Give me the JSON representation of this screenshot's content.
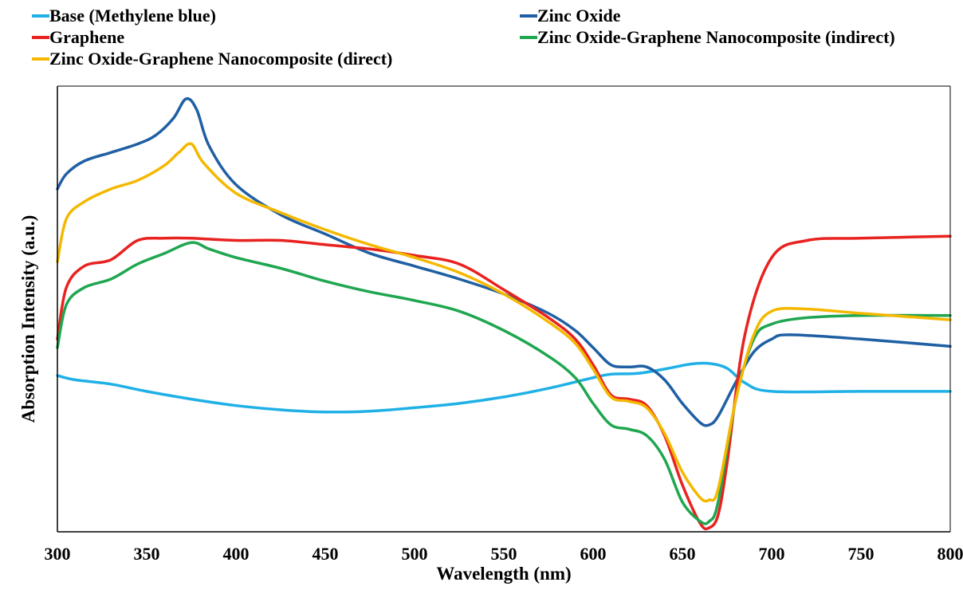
{
  "chart_data": {
    "type": "line",
    "title": "",
    "xlabel": "Wavelength (nm)",
    "ylabel": "Absorption Intensity (a.u.)",
    "xlim": [
      300,
      800
    ],
    "ylim": [
      0,
      1
    ],
    "xticks": [
      300,
      350,
      400,
      450,
      500,
      550,
      600,
      650,
      700,
      750,
      800
    ],
    "grid": false,
    "legend_position": "top",
    "series": [
      {
        "name": "Base (Methylene blue)",
        "color": "#1fb0e6",
        "x": [
          300,
          310,
          330,
          350,
          375,
          400,
          425,
          450,
          475,
          500,
          525,
          550,
          575,
          600,
          610,
          625,
          640,
          655,
          665,
          675,
          685,
          700,
          750,
          800
        ],
        "y": [
          0.355,
          0.345,
          0.335,
          0.318,
          0.3,
          0.285,
          0.275,
          0.27,
          0.272,
          0.28,
          0.29,
          0.305,
          0.325,
          0.35,
          0.358,
          0.36,
          0.37,
          0.382,
          0.383,
          0.372,
          0.338,
          0.318,
          0.318,
          0.318
        ]
      },
      {
        "name": "Zinc Oxide",
        "color": "#1f5fa3",
        "x": [
          300,
          305,
          315,
          330,
          345,
          355,
          365,
          372,
          378,
          385,
          400,
          425,
          450,
          475,
          500,
          525,
          550,
          575,
          590,
          600,
          610,
          620,
          630,
          640,
          650,
          660,
          665,
          670,
          680,
          690,
          700,
          710,
          750,
          800
        ],
        "y": [
          0.79,
          0.825,
          0.855,
          0.875,
          0.895,
          0.915,
          0.955,
          1.0,
          0.975,
          0.89,
          0.8,
          0.73,
          0.685,
          0.64,
          0.61,
          0.58,
          0.545,
          0.5,
          0.46,
          0.42,
          0.38,
          0.375,
          0.375,
          0.345,
          0.29,
          0.245,
          0.24,
          0.26,
          0.34,
          0.41,
          0.44,
          0.45,
          0.44,
          0.423
        ]
      },
      {
        "name": "Graphene",
        "color": "#e8221f",
        "x": [
          300,
          305,
          315,
          330,
          345,
          360,
          375,
          400,
          425,
          450,
          475,
          500,
          525,
          550,
          575,
          590,
          600,
          610,
          620,
          630,
          640,
          650,
          660,
          665,
          670,
          675,
          685,
          700,
          720,
          750,
          800
        ],
        "y": [
          0.44,
          0.56,
          0.61,
          0.625,
          0.67,
          0.675,
          0.675,
          0.67,
          0.67,
          0.66,
          0.65,
          0.635,
          0.615,
          0.555,
          0.49,
          0.44,
          0.38,
          0.31,
          0.3,
          0.285,
          0.215,
          0.1,
          0.01,
          0.0,
          0.03,
          0.15,
          0.45,
          0.63,
          0.67,
          0.675,
          0.68
        ]
      },
      {
        "name": "Zinc Oxide-Graphene Nanocomposite (indirect)",
        "color": "#1fa650",
        "x": [
          300,
          305,
          315,
          330,
          345,
          360,
          375,
          385,
          400,
          425,
          450,
          475,
          500,
          525,
          550,
          575,
          590,
          600,
          610,
          620,
          630,
          640,
          650,
          660,
          665,
          670,
          680,
          690,
          700,
          720,
          750,
          800
        ],
        "y": [
          0.42,
          0.52,
          0.56,
          0.58,
          0.615,
          0.64,
          0.665,
          0.65,
          0.63,
          0.605,
          0.575,
          0.55,
          0.53,
          0.505,
          0.46,
          0.4,
          0.35,
          0.29,
          0.24,
          0.23,
          0.215,
          0.16,
          0.06,
          0.015,
          0.015,
          0.06,
          0.3,
          0.44,
          0.475,
          0.49,
          0.495,
          0.495
        ]
      },
      {
        "name": "Zinc Oxide-Graphene Nanocomposite (direct)",
        "color": "#f5b800",
        "x": [
          300,
          305,
          315,
          330,
          345,
          360,
          368,
          375,
          382,
          400,
          425,
          450,
          475,
          500,
          525,
          550,
          575,
          590,
          600,
          610,
          620,
          630,
          640,
          650,
          660,
          665,
          670,
          680,
          690,
          700,
          720,
          750,
          800
        ],
        "y": [
          0.62,
          0.72,
          0.76,
          0.79,
          0.81,
          0.845,
          0.875,
          0.895,
          0.85,
          0.78,
          0.735,
          0.695,
          0.66,
          0.63,
          0.595,
          0.545,
          0.48,
          0.43,
          0.37,
          0.305,
          0.295,
          0.28,
          0.22,
          0.13,
          0.07,
          0.065,
          0.09,
          0.3,
          0.45,
          0.505,
          0.51,
          0.5,
          0.485
        ]
      }
    ]
  }
}
